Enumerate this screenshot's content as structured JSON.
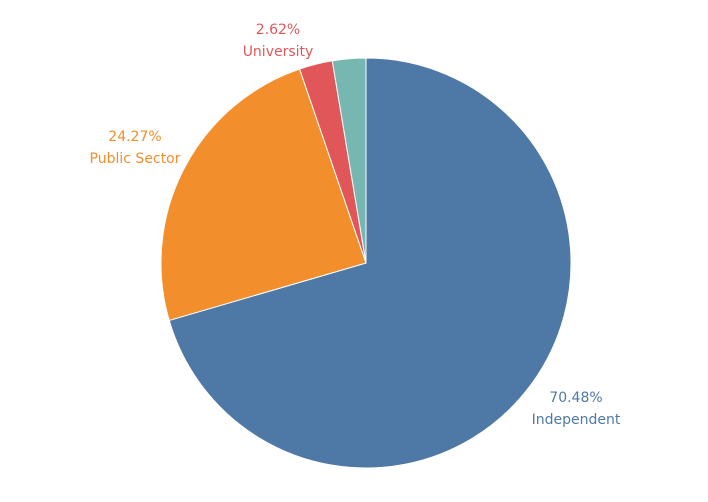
{
  "chart_data": {
    "type": "pie",
    "title": "",
    "start_angle_deg": 0,
    "direction": "clockwise",
    "slices": [
      {
        "label": "Independent",
        "value": 70.48,
        "value_label": "70.48%",
        "color": "#4e79a7"
      },
      {
        "label": "Public Sector",
        "value": 24.27,
        "value_label": "24.27%",
        "color": "#f28e2b"
      },
      {
        "label": "University",
        "value": 2.62,
        "value_label": "2.62%",
        "color": "#e15759"
      },
      {
        "label": "",
        "value": 2.63,
        "value_label": "",
        "color": "#76b7b2"
      }
    ]
  }
}
